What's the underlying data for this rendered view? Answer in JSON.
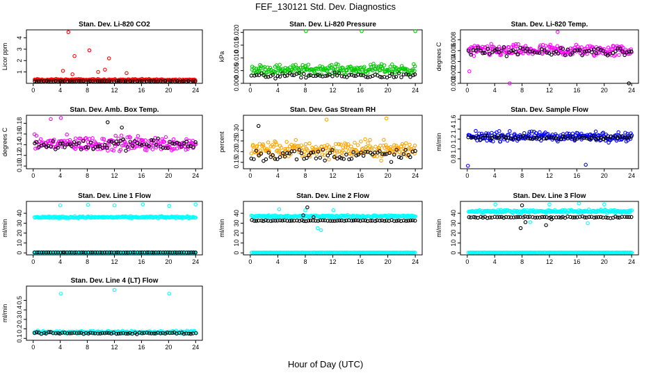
{
  "figure": {
    "title": "FEF_130121  Std. Dev. Diagnostics",
    "xlabel": "Hour of Day (UTC)"
  },
  "colors": {
    "co2": "#ff0000",
    "pressure": "#00cc00",
    "temp": "#ff00ff",
    "rh": "#ffa500",
    "flow": "#0000ff",
    "line": "#00ffff",
    "overlay": "#000000"
  },
  "chart_data": [
    {
      "type": "scatter",
      "title": "Stan. Dev. Li-820 CO2",
      "ylabel": "Licor ppm",
      "ylim": [
        0,
        4.7
      ],
      "yticks": [
        1,
        2,
        3,
        4
      ],
      "xlim": [
        -1,
        25
      ],
      "xticks": [
        0,
        4,
        8,
        12,
        16,
        20,
        24
      ],
      "series": [
        {
          "color": "#ff0000",
          "base": 0.3,
          "spread": 0.12,
          "outliers": [
            [
              5.2,
              4.5
            ],
            [
              8.3,
              2.9
            ],
            [
              6.1,
              2.4
            ],
            [
              11.2,
              2.2
            ],
            [
              4.4,
              1.1
            ],
            [
              13.8,
              0.9
            ],
            [
              10.6,
              1.2
            ],
            [
              5.8,
              0.8
            ],
            [
              9.6,
              1.0
            ]
          ]
        },
        {
          "color": "#000000",
          "base": 0.18,
          "spread": 0.03,
          "outliers": []
        }
      ]
    },
    {
      "type": "scatter",
      "title": "Stan. Dev. Li-820 Pressure",
      "ylabel": "kPa",
      "ylim": [
        0,
        0.021
      ],
      "yticks": [
        0.0,
        0.005,
        0.01,
        0.015,
        0.02
      ],
      "xlim": [
        -1,
        25
      ],
      "xticks": [
        0,
        4,
        8,
        12,
        16,
        20,
        24
      ],
      "series": [
        {
          "color": "#00cc00",
          "base": 0.0055,
          "spread": 0.0028,
          "outliers": [
            [
              8.1,
              0.0205
            ],
            [
              16.2,
              0.0205
            ],
            [
              24.0,
              0.0205
            ]
          ]
        },
        {
          "color": "#000000",
          "base": 0.003,
          "spread": 0.0015,
          "outliers": []
        }
      ]
    },
    {
      "type": "scatter",
      "title": "Stan. Dev. Li-820 Temp.",
      "ylabel": "degrees C",
      "ylim": [
        0,
        0.0098
      ],
      "yticks": [
        0.0,
        0.002,
        0.004,
        0.006,
        0.008
      ],
      "xlim": [
        -1,
        25
      ],
      "xticks": [
        0,
        4,
        8,
        12,
        16,
        20,
        24
      ],
      "series": [
        {
          "color": "#ff00ff",
          "base": 0.006,
          "spread": 0.0016,
          "outliers": [
            [
              6.2,
              0.0
            ],
            [
              13.2,
              0.0094
            ],
            [
              0.3,
              0.0022
            ]
          ]
        },
        {
          "color": "#000000",
          "base": 0.0058,
          "spread": 0.0012,
          "outliers": [
            [
              23.6,
              0.0
            ]
          ]
        }
      ]
    },
    {
      "type": "scatter",
      "title": "Stan. Dev. Amb. Box Temp.",
      "ylabel": "degrees C",
      "ylim": [
        0.095,
        0.195
      ],
      "yticks": [
        0.1,
        0.12,
        0.14,
        0.16,
        0.18
      ],
      "xlim": [
        -1,
        25
      ],
      "xticks": [
        0,
        4,
        8,
        12,
        16,
        20,
        24
      ],
      "series": [
        {
          "color": "#ff00ff",
          "base": 0.142,
          "spread": 0.02,
          "outliers": [
            [
              4.1,
              0.19
            ],
            [
              2.6,
              0.188
            ]
          ]
        },
        {
          "color": "#000000",
          "base": 0.14,
          "spread": 0.016,
          "outliers": [
            [
              11.0,
              0.182
            ],
            [
              13.1,
              0.172
            ]
          ]
        }
      ]
    },
    {
      "type": "scatter",
      "title": "Stan. Dev. Gas Stream RH",
      "ylabel": "percent",
      "ylim": [
        0.12,
        0.37
      ],
      "yticks": [
        0.15,
        0.2,
        0.25,
        0.3
      ],
      "xlim": [
        -1,
        25
      ],
      "xticks": [
        0,
        4,
        8,
        12,
        16,
        20,
        24
      ],
      "series": [
        {
          "color": "#ffa500",
          "base": 0.21,
          "spread": 0.06,
          "outliers": [
            [
              11.1,
              0.35
            ],
            [
              19.8,
              0.355
            ]
          ]
        },
        {
          "color": "#000000",
          "base": 0.185,
          "spread": 0.045,
          "outliers": [
            [
              1.2,
              0.32
            ]
          ]
        }
      ]
    },
    {
      "type": "scatter",
      "title": "Stan. Dev. Sample Flow",
      "ylabel": "ml/min",
      "ylim": [
        0.6,
        1.68
      ],
      "yticks": [
        0.8,
        1.0,
        1.2,
        1.4,
        1.6
      ],
      "xlim": [
        -1,
        25
      ],
      "xticks": [
        0,
        4,
        8,
        12,
        16,
        20,
        24
      ],
      "series": [
        {
          "color": "#0000ff",
          "base": 1.25,
          "spread": 0.14,
          "outliers": [
            [
              0.1,
              0.66
            ],
            [
              17.3,
              0.68
            ]
          ]
        },
        {
          "color": "#000000",
          "base": 1.23,
          "spread": 0.06,
          "outliers": []
        }
      ]
    },
    {
      "type": "scatter",
      "title": "Stan. Dev. Line 1 Flow",
      "ylabel": "ml/min",
      "ylim": [
        -2,
        52
      ],
      "yticks": [
        0,
        10,
        20,
        30,
        40
      ],
      "xlim": [
        -1,
        25
      ],
      "xticks": [
        0,
        4,
        8,
        12,
        16,
        20,
        24
      ],
      "series": [
        {
          "color": "#00ffff",
          "base": 36,
          "spread": 1.4,
          "outliers": [
            [
              4.0,
              48
            ],
            [
              8.1,
              48.5
            ],
            [
              12.0,
              48
            ],
            [
              16.2,
              49
            ],
            [
              20.1,
              47.5
            ],
            [
              24.0,
              49
            ]
          ]
        },
        {
          "color": "#00ffff",
          "base": 0.4,
          "spread": 0.1,
          "outliers": []
        },
        {
          "color": "#000000",
          "base": 0.5,
          "spread": 0.05,
          "outliers": []
        }
      ]
    },
    {
      "type": "scatter",
      "title": "Stan. Dev. Line 2 Flow",
      "ylabel": "ml/min",
      "ylim": [
        -2,
        52
      ],
      "yticks": [
        0,
        10,
        20,
        30,
        40
      ],
      "xlim": [
        -1,
        25
      ],
      "xticks": [
        0,
        4,
        8,
        12,
        16,
        20,
        24
      ],
      "series": [
        {
          "color": "#00ffff",
          "base": 37,
          "spread": 1.5,
          "outliers": [
            [
              4.2,
              44
            ],
            [
              8.0,
              43
            ],
            [
              9.8,
              25
            ],
            [
              10.3,
              23
            ],
            [
              12.1,
              43
            ]
          ]
        },
        {
          "color": "#00ffff",
          "base": 0.4,
          "spread": 0.1,
          "outliers": []
        },
        {
          "color": "#000000",
          "base": 32.5,
          "spread": 0.8,
          "outliers": [
            [
              8.3,
              46
            ],
            [
              7.7,
              38
            ],
            [
              9.2,
              36
            ]
          ]
        }
      ]
    },
    {
      "type": "scatter",
      "title": "Stan. Dev. Line 3 Flow",
      "ylabel": "ml/min",
      "ylim": [
        -2,
        52
      ],
      "yticks": [
        0,
        10,
        20,
        30,
        40
      ],
      "xlim": [
        -1,
        25
      ],
      "xticks": [
        0,
        4,
        8,
        12,
        16,
        20,
        24
      ],
      "series": [
        {
          "color": "#00ffff",
          "base": 42,
          "spread": 2.2,
          "outliers": [
            [
              4.1,
              49
            ],
            [
              12.0,
              49
            ],
            [
              16.3,
              50
            ],
            [
              20.0,
              49
            ],
            [
              17.6,
              30
            ],
            [
              9.2,
              31
            ]
          ]
        },
        {
          "color": "#00ffff",
          "base": 0.4,
          "spread": 0.1,
          "outliers": []
        },
        {
          "color": "#000000",
          "base": 36,
          "spread": 1.0,
          "outliers": [
            [
              8.0,
              48
            ],
            [
              7.8,
              25
            ],
            [
              8.5,
              31
            ],
            [
              11.5,
              28
            ],
            [
              12.3,
              34
            ]
          ]
        }
      ]
    },
    {
      "type": "scatter",
      "title": "Stan. Dev. Line 4 (LT) Flow",
      "ylabel": "ml/min",
      "ylim": [
        0.08,
        0.65
      ],
      "yticks": [
        0.1,
        0.2,
        0.3,
        0.4,
        0.5
      ],
      "xlim": [
        -1,
        25
      ],
      "xticks": [
        0,
        4,
        8,
        12,
        16,
        20,
        24
      ],
      "series": [
        {
          "color": "#00ffff",
          "base": 0.165,
          "spread": 0.02,
          "outliers": [
            [
              4.1,
              0.57
            ],
            [
              12.0,
              0.61
            ],
            [
              20.1,
              0.57
            ]
          ]
        },
        {
          "color": "#000000",
          "base": 0.155,
          "spread": 0.015,
          "outliers": []
        }
      ]
    }
  ]
}
